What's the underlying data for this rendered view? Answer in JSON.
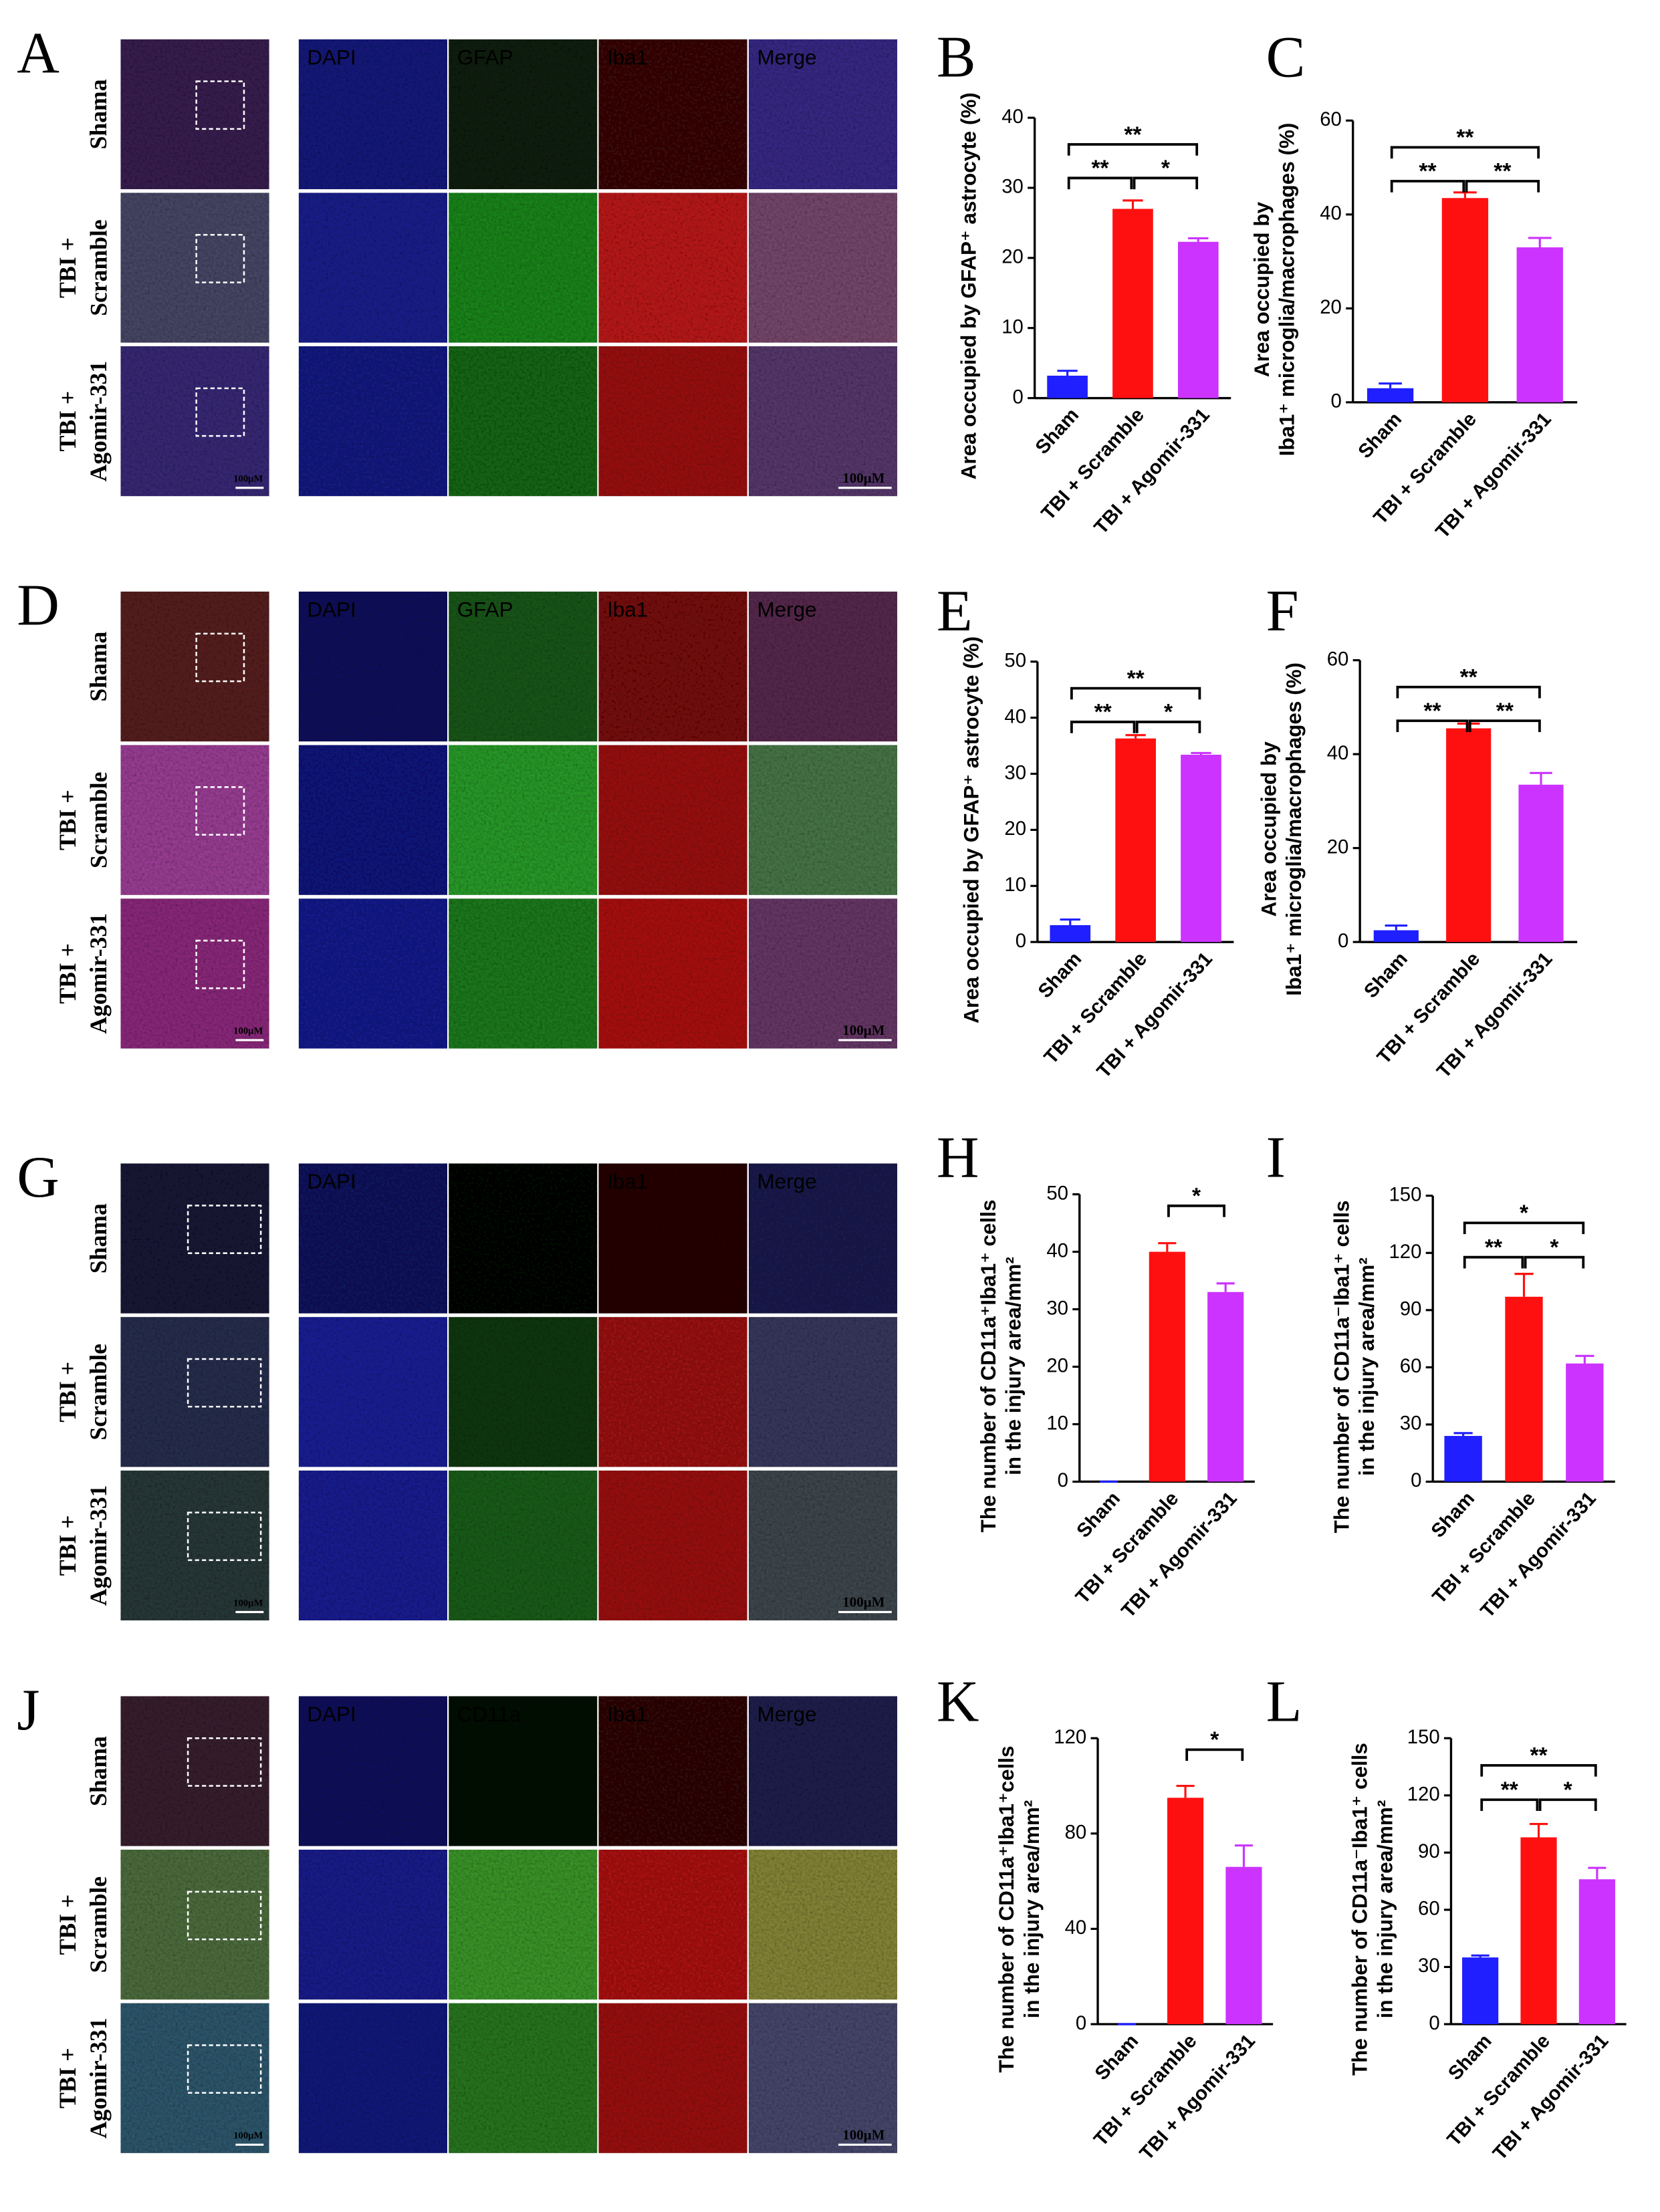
{
  "image_panels": [
    {
      "letter": "A",
      "rows": [
        [
          "Shama"
        ],
        [
          "TBI +",
          "Scramble"
        ],
        [
          "TBI +",
          "Agomir-331"
        ]
      ],
      "channels": [
        "DAPI",
        "GFAP",
        "Iba1",
        "Merge"
      ],
      "scale_bars": [
        "100μM",
        "100μM"
      ]
    },
    {
      "letter": "D",
      "rows": [
        [
          "Shama"
        ],
        [
          "TBI +",
          "Scramble"
        ],
        [
          "TBI +",
          "Agomir-331"
        ]
      ],
      "channels": [
        "DAPI",
        "GFAP",
        "Iba1",
        "Merge"
      ],
      "scale_bars": [
        "100μM",
        "100μM"
      ]
    },
    {
      "letter": "G",
      "rows": [
        [
          "Shama"
        ],
        [
          "TBI +",
          "Scramble"
        ],
        [
          "TBI +",
          "Agomir-331"
        ]
      ],
      "channels": [
        "DAPI",
        "CD11a",
        "Iba1",
        "Merge"
      ],
      "scale_bars": [
        "100μM",
        "100μM"
      ]
    },
    {
      "letter": "J",
      "rows": [
        [
          "Shama"
        ],
        [
          "TBI +",
          "Scramble"
        ],
        [
          "TBI +",
          "Agomir-331"
        ]
      ],
      "channels": [
        "DAPI",
        "CD11a",
        "Iba1",
        "Merge"
      ],
      "scale_bars": [
        "100μM",
        "100μM"
      ]
    }
  ],
  "chart_data": [
    {
      "type": "bar",
      "panel": "B",
      "ylabel": [
        "Area occupied by GFAP⁺ astrocyte (%)"
      ],
      "categories": [
        "Sham",
        "TBI + Scramble",
        "TBI + Agomir-331"
      ],
      "values": [
        3.2,
        27,
        22.3
      ],
      "errors": [
        0.7,
        1.2,
        0.5
      ],
      "colors": [
        "#1f1fff",
        "#ff1010",
        "#cc33ff"
      ],
      "ylim": [
        0,
        40
      ],
      "yticks": [
        0,
        10,
        20,
        30,
        40
      ],
      "significance": [
        {
          "pair": [
            0,
            2
          ],
          "label": "**"
        },
        {
          "pair": [
            0,
            1
          ],
          "label": "**"
        },
        {
          "pair": [
            1,
            2
          ],
          "label": "*"
        }
      ]
    },
    {
      "type": "bar",
      "panel": "C",
      "ylabel": [
        "Area occupied by",
        "Iba1⁺ microglia/macrophages (%)"
      ],
      "categories": [
        "Sham",
        "TBI + Scramble",
        "TBI + Agomir-331"
      ],
      "values": [
        3,
        43.5,
        33
      ],
      "errors": [
        1,
        1.2,
        2
      ],
      "colors": [
        "#1f1fff",
        "#ff1010",
        "#cc33ff"
      ],
      "ylim": [
        0,
        60
      ],
      "yticks": [
        0,
        20,
        40,
        60
      ],
      "significance": [
        {
          "pair": [
            0,
            2
          ],
          "label": "**"
        },
        {
          "pair": [
            0,
            1
          ],
          "label": "**"
        },
        {
          "pair": [
            1,
            2
          ],
          "label": "**"
        }
      ]
    },
    {
      "type": "bar",
      "panel": "E",
      "ylabel": [
        "Area occupied by GFAP⁺ astrocyte (%)"
      ],
      "categories": [
        "Sham",
        "TBI + Scramble",
        "TBI + Agomir-331"
      ],
      "values": [
        3,
        36.3,
        33.4
      ],
      "errors": [
        1,
        0.6,
        0.3
      ],
      "colors": [
        "#1f1fff",
        "#ff1010",
        "#cc33ff"
      ],
      "ylim": [
        0,
        50
      ],
      "yticks": [
        0,
        10,
        20,
        30,
        40,
        50
      ],
      "significance": [
        {
          "pair": [
            0,
            2
          ],
          "label": "**"
        },
        {
          "pair": [
            0,
            1
          ],
          "label": "**"
        },
        {
          "pair": [
            1,
            2
          ],
          "label": "*"
        }
      ]
    },
    {
      "type": "bar",
      "panel": "F",
      "ylabel": [
        "Area occupied by",
        "Iba1⁺ microglia/macrophages (%)"
      ],
      "categories": [
        "Sham",
        "TBI + Scramble",
        "TBI + Agomir-331"
      ],
      "values": [
        2.5,
        45.5,
        33.5
      ],
      "errors": [
        1,
        1,
        2.5
      ],
      "colors": [
        "#1f1fff",
        "#ff1010",
        "#cc33ff"
      ],
      "ylim": [
        0,
        60
      ],
      "yticks": [
        0,
        20,
        40,
        60
      ],
      "significance": [
        {
          "pair": [
            0,
            2
          ],
          "label": "**"
        },
        {
          "pair": [
            0,
            1
          ],
          "label": "**"
        },
        {
          "pair": [
            1,
            2
          ],
          "label": "**"
        }
      ]
    },
    {
      "type": "bar",
      "panel": "H",
      "ylabel": [
        "The number of CD11a⁺Iba1⁺ cells",
        "in the injury area/mm²"
      ],
      "categories": [
        "Sham",
        "TBI + Scramble",
        "TBI + Agomir-331"
      ],
      "values": [
        0,
        40,
        33
      ],
      "errors": [
        0,
        1.5,
        1.5
      ],
      "colors": [
        "#1f1fff",
        "#ff1010",
        "#cc33ff"
      ],
      "ylim": [
        0,
        50
      ],
      "yticks": [
        0,
        10,
        20,
        30,
        40,
        50
      ],
      "significance": [
        {
          "pair": [
            1,
            2
          ],
          "label": "*"
        }
      ]
    },
    {
      "type": "bar",
      "panel": "I",
      "ylabel": [
        "The number of CD11a⁻Iba1⁺ cells",
        "in the injury area/mm²"
      ],
      "categories": [
        "Sham",
        "TBI + Scramble",
        "TBI + Agomir-331"
      ],
      "values": [
        24,
        97,
        62
      ],
      "errors": [
        1.5,
        12,
        4
      ],
      "colors": [
        "#1f1fff",
        "#ff1010",
        "#cc33ff"
      ],
      "ylim": [
        0,
        150
      ],
      "yticks": [
        0,
        30,
        60,
        90,
        120,
        150
      ],
      "significance": [
        {
          "pair": [
            0,
            2
          ],
          "label": "*"
        },
        {
          "pair": [
            0,
            1
          ],
          "label": "**"
        },
        {
          "pair": [
            1,
            2
          ],
          "label": "*"
        }
      ]
    },
    {
      "type": "bar",
      "panel": "K",
      "ylabel": [
        "The number of CD11a⁺Iba1⁺cells",
        "in the injury area/mm²"
      ],
      "categories": [
        "Sham",
        "TBI + Scramble",
        "TBI + Agomir-331"
      ],
      "values": [
        0,
        95,
        66
      ],
      "errors": [
        0,
        5,
        9
      ],
      "colors": [
        "#1f1fff",
        "#ff1010",
        "#cc33ff"
      ],
      "ylim": [
        0,
        120
      ],
      "yticks": [
        0,
        40,
        80,
        120
      ],
      "significance": [
        {
          "pair": [
            1,
            2
          ],
          "label": "*"
        }
      ]
    },
    {
      "type": "bar",
      "panel": "L",
      "ylabel": [
        "The number of CD11a⁻Iba1⁺ cells",
        "in the injury area/mm²"
      ],
      "categories": [
        "Sham",
        "TBI + Scramble",
        "TBI + Agomir-331"
      ],
      "values": [
        35,
        98,
        76
      ],
      "errors": [
        1,
        7,
        6
      ],
      "colors": [
        "#1f1fff",
        "#ff1010",
        "#cc33ff"
      ],
      "ylim": [
        0,
        150
      ],
      "yticks": [
        0,
        30,
        60,
        90,
        120,
        150
      ],
      "significance": [
        {
          "pair": [
            0,
            2
          ],
          "label": "**"
        },
        {
          "pair": [
            0,
            1
          ],
          "label": "**"
        },
        {
          "pair": [
            1,
            2
          ],
          "label": "*"
        }
      ]
    }
  ]
}
